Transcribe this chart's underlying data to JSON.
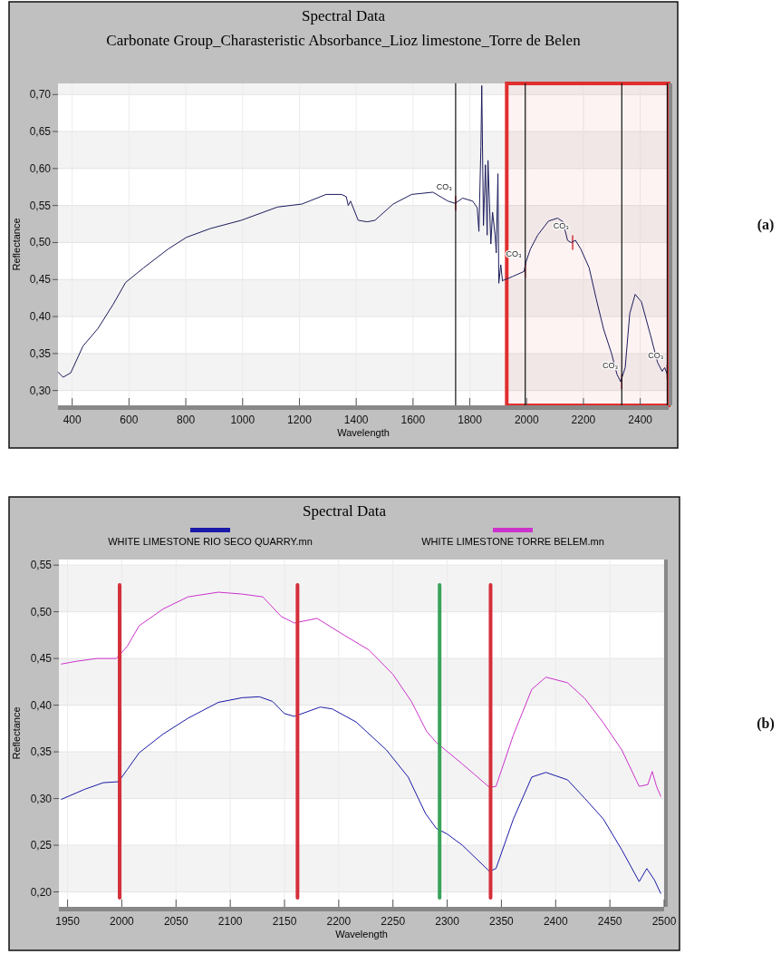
{
  "chart_data": [
    {
      "type": "line",
      "title": "Spectral Data",
      "subtitle": "Carbonate Group_Charasteristic Absorbance_Lioz limestone_Torre de Belen",
      "xlabel": "Wavelength",
      "ylabel": "Reflectance",
      "xlim": [
        350,
        2500
      ],
      "ylim": [
        0.28,
        0.715
      ],
      "xticks": [
        400,
        600,
        800,
        1000,
        1200,
        1400,
        1600,
        1800,
        2000,
        2200,
        2400
      ],
      "yticks": [
        {
          "value": 0.3,
          "label": "0,30"
        },
        {
          "value": 0.35,
          "label": "0,35"
        },
        {
          "value": 0.4,
          "label": "0,40"
        },
        {
          "value": 0.45,
          "label": "0,45"
        },
        {
          "value": 0.5,
          "label": "0,50"
        },
        {
          "value": 0.55,
          "label": "0,55"
        },
        {
          "value": 0.6,
          "label": "0,60"
        },
        {
          "value": 0.65,
          "label": "0,65"
        },
        {
          "value": 0.7,
          "label": "0,70"
        }
      ],
      "grid": true,
      "series": [
        {
          "color": "#1c1c5c",
          "x": [
            350,
            368,
            395,
            438,
            491,
            545,
            588,
            652,
            737,
            802,
            887,
            995,
            1123,
            1209,
            1294,
            1348,
            1365,
            1372,
            1380,
            1407,
            1439,
            1466,
            1530,
            1595,
            1670,
            1723,
            1748,
            1775,
            1810,
            1826,
            1832,
            1839,
            1842,
            1848,
            1855,
            1861,
            1864,
            1874,
            1880,
            1889,
            1893,
            1899,
            1902,
            1909,
            1915,
            1918,
            1950,
            1991,
            1997,
            2013,
            2039,
            2077,
            2109,
            2128,
            2144,
            2156,
            2172,
            2191,
            2220,
            2245,
            2271,
            2299,
            2318,
            2331,
            2347,
            2363,
            2382,
            2404,
            2436,
            2461,
            2477,
            2486,
            2495
          ],
          "values": [
            0.325,
            0.318,
            0.324,
            0.36,
            0.384,
            0.417,
            0.446,
            0.466,
            0.491,
            0.507,
            0.519,
            0.53,
            0.548,
            0.552,
            0.565,
            0.565,
            0.562,
            0.55,
            0.556,
            0.53,
            0.528,
            0.53,
            0.552,
            0.565,
            0.568,
            0.556,
            0.553,
            0.56,
            0.556,
            0.547,
            0.515,
            0.63,
            0.712,
            0.523,
            0.605,
            0.51,
            0.611,
            0.498,
            0.541,
            0.51,
            0.486,
            0.593,
            0.445,
            0.47,
            0.448,
            0.449,
            0.454,
            0.461,
            0.473,
            0.491,
            0.51,
            0.529,
            0.533,
            0.528,
            0.503,
            0.5,
            0.503,
            0.491,
            0.466,
            0.424,
            0.383,
            0.35,
            0.322,
            0.312,
            0.331,
            0.404,
            0.43,
            0.42,
            0.375,
            0.338,
            0.326,
            0.331,
            0.322
          ]
        }
      ],
      "bands": [
        {
          "axis": "x",
          "from": 1930,
          "to": 2500,
          "color": "#e02f2f"
        }
      ],
      "ref_lines": [
        {
          "axis": "x",
          "value": 1750,
          "color": "#111111"
        },
        {
          "axis": "x",
          "value": 1995,
          "color": "#111111"
        },
        {
          "axis": "x",
          "value": 2335,
          "color": "#111111"
        },
        {
          "axis": "x",
          "value": 2495,
          "color": "#111111"
        }
      ],
      "annotations": [
        {
          "text": "CO₃",
          "x": 1750,
          "y": 0.553
        },
        {
          "text": "CO₃",
          "x": 1995,
          "y": 0.462
        },
        {
          "text": "CO₃",
          "x": 2162,
          "y": 0.5
        },
        {
          "text": "CO₃",
          "x": 2335,
          "y": 0.312
        },
        {
          "text": "CO₃",
          "x": 2495,
          "y": 0.325
        },
        "(a)"
      ]
    },
    {
      "type": "line",
      "title": "Spectral Data",
      "xlabel": "Wavelength",
      "ylabel": "Reflectance",
      "xlim": [
        1942,
        2500
      ],
      "ylim": [
        0.184,
        0.556
      ],
      "xticks": [
        1950,
        2000,
        2050,
        2100,
        2150,
        2200,
        2250,
        2300,
        2350,
        2400,
        2450,
        2500
      ],
      "yticks": [
        {
          "value": 0.2,
          "label": "0,20"
        },
        {
          "value": 0.25,
          "label": "0,25"
        },
        {
          "value": 0.3,
          "label": "0,30"
        },
        {
          "value": 0.35,
          "label": "0,35"
        },
        {
          "value": 0.4,
          "label": "0,40"
        },
        {
          "value": 0.45,
          "label": "0,45"
        },
        {
          "value": 0.5,
          "label": "0,50"
        },
        {
          "value": 0.55,
          "label": "0,55"
        }
      ],
      "grid": true,
      "legend": "top",
      "series": [
        {
          "name": "WHITE LIMESTONE RIO SECO QUARRY.mn",
          "color": "#1a1aa8",
          "x": [
            1944,
            1966,
            1983,
            1997,
            2005,
            2016,
            2038,
            2061,
            2089,
            2111,
            2127,
            2139,
            2150,
            2159,
            2183,
            2194,
            2216,
            2244,
            2264,
            2280,
            2290,
            2300,
            2314,
            2339,
            2345,
            2361,
            2378,
            2391,
            2411,
            2427,
            2444,
            2461,
            2477,
            2484,
            2491,
            2497
          ],
          "values": [
            0.299,
            0.31,
            0.317,
            0.318,
            0.331,
            0.349,
            0.369,
            0.386,
            0.403,
            0.408,
            0.409,
            0.404,
            0.391,
            0.388,
            0.398,
            0.396,
            0.382,
            0.352,
            0.323,
            0.284,
            0.268,
            0.262,
            0.25,
            0.222,
            0.225,
            0.278,
            0.323,
            0.328,
            0.32,
            0.3,
            0.278,
            0.245,
            0.211,
            0.225,
            0.213,
            0.198
          ]
        },
        {
          "name": "WHITE LIMESTONE TORRE BELEM.mn",
          "color": "#cc33cc",
          "x": [
            1944,
            1958,
            1977,
            1995,
            2005,
            2016,
            2038,
            2061,
            2089,
            2111,
            2130,
            2147,
            2159,
            2180,
            2205,
            2228,
            2250,
            2267,
            2281,
            2290,
            2314,
            2339,
            2345,
            2361,
            2378,
            2391,
            2411,
            2427,
            2444,
            2461,
            2477,
            2485,
            2489,
            2493,
            2497
          ],
          "values": [
            0.444,
            0.447,
            0.45,
            0.45,
            0.463,
            0.485,
            0.503,
            0.516,
            0.521,
            0.519,
            0.516,
            0.495,
            0.488,
            0.493,
            0.475,
            0.459,
            0.433,
            0.404,
            0.372,
            0.36,
            0.337,
            0.312,
            0.313,
            0.368,
            0.417,
            0.43,
            0.424,
            0.407,
            0.381,
            0.352,
            0.313,
            0.315,
            0.329,
            0.313,
            0.302
          ]
        }
      ],
      "ref_lines": [
        {
          "axis": "x",
          "value": 1998,
          "color": "#d42f3a"
        },
        {
          "axis": "x",
          "value": 2162,
          "color": "#d42f3a"
        },
        {
          "axis": "x",
          "value": 2293,
          "color": "#3aa35a"
        },
        {
          "axis": "x",
          "value": 2340,
          "color": "#d42f3a"
        }
      ],
      "annotations": [
        "(b)"
      ]
    }
  ]
}
